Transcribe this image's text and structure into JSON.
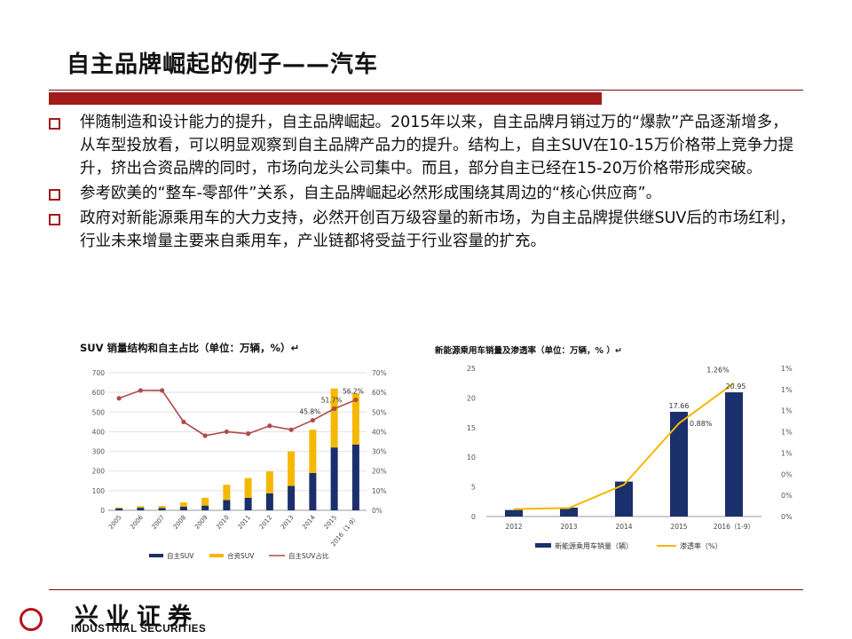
{
  "slide": {
    "title": "自主品牌崛起的例子——汽车",
    "bullets": [
      "伴随制造和设计能力的提升，自主品牌崛起。2015年以来，自主品牌月销过万的“爆款”产品逐渐增多，从车型投放看，可以明显观察到自主品牌产品力的提升。结构上，自主SUV在10-15万价格带上竞争力提升，挤出合资品牌的同时，市场向龙头公司集中。而且，部分自主已经在15-20万价格带形成突破。",
      "参考欧美的“整车-零部件”关系，自主品牌崛起必然形成围绕其周边的“核心供应商”。",
      "政府对新能源乘用车的大力支持，必然开创百万级容量的新市场，为自主品牌提供继SUV后的市场红利，行业未来增量主要来自乘用车，产业链都将受益于行业容量的扩充。"
    ],
    "logo": {
      "cn": "兴业证券",
      "en": "INDUSTRIAL SECURITIES"
    },
    "colors": {
      "accent": "#a11b1b",
      "navy": "#1a2f6b",
      "gold": "#f5b800",
      "line_red": "#b04a4a"
    }
  },
  "chart_data": [
    {
      "type": "bar",
      "stacked": true,
      "title": "SUV 销量结构和自主占比（单位：万辆，%）↵",
      "categories": [
        "2005",
        "2006",
        "2007",
        "2008",
        "2009",
        "2010",
        "2011",
        "2012",
        "2013",
        "2014",
        "2015",
        "2016（1-9）"
      ],
      "series": [
        {
          "name": "自主SUV",
          "kind": "bar",
          "values": [
            10,
            13,
            12,
            18,
            24,
            52,
            64,
            86,
            124,
            190,
            320,
            335
          ]
        },
        {
          "name": "合资SUV",
          "kind": "bar",
          "values": [
            5,
            8,
            10,
            22,
            40,
            78,
            100,
            112,
            176,
            220,
            300,
            260
          ]
        },
        {
          "name": "自主SUV占比",
          "kind": "line",
          "axis": "right",
          "values": [
            57,
            61,
            61,
            45,
            38,
            40,
            39,
            43,
            41,
            45.8,
            51.7,
            56.2
          ]
        }
      ],
      "point_labels": [
        "45.8%",
        "51.7%",
        "56.2%"
      ],
      "y_ticks": [
        "0",
        "100",
        "200",
        "300",
        "400",
        "500",
        "600",
        "700"
      ],
      "y2_ticks": [
        "0%",
        "10%",
        "20%",
        "30%",
        "40%",
        "50%",
        "60%",
        "70%"
      ],
      "ylim": [
        0,
        700
      ],
      "y2lim": [
        0,
        70
      ],
      "legend": [
        "自主SUV",
        "合资SUV",
        "自主SUV占比"
      ]
    },
    {
      "type": "bar",
      "title": "新能源乘用车销量及渗透率（单位：万辆，% ）↵",
      "categories": [
        "2012",
        "2013",
        "2014",
        "2015",
        "2016（1-9）"
      ],
      "series": [
        {
          "name": "新能源乘用车销量（辆）",
          "kind": "bar",
          "values": [
            1.1,
            1.5,
            5.9,
            17.66,
            20.95
          ]
        },
        {
          "name": "渗透率（%）",
          "kind": "line",
          "axis": "right",
          "values": [
            0.07,
            0.08,
            0.3,
            0.88,
            1.26
          ]
        }
      ],
      "bar_labels": [
        "17.66",
        "20.95"
      ],
      "point_labels": [
        "0.88%",
        "1.26%"
      ],
      "y_ticks": [
        "0",
        "5",
        "10",
        "15",
        "20",
        "25"
      ],
      "y2_ticks": [
        "0%",
        "0%",
        "0%",
        "1%",
        "1%",
        "1%",
        "1%",
        "1%"
      ],
      "ylim": [
        0,
        25
      ],
      "y2lim": [
        0,
        1.4
      ],
      "legend": [
        "新能源乘用车销量（辆）",
        "渗透率（%）"
      ]
    }
  ]
}
